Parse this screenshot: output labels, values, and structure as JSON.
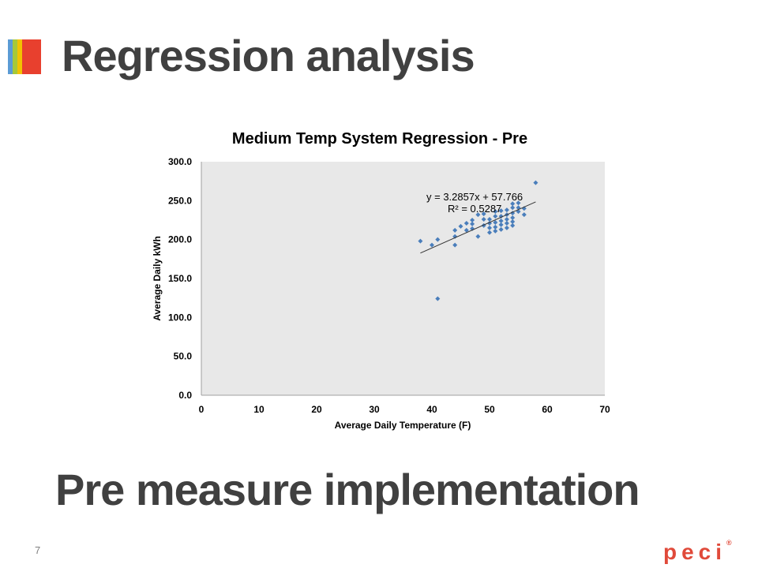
{
  "slide": {
    "title": "Regression analysis",
    "subtitle": "Pre measure implementation",
    "page_number": "7",
    "logo_text": "peci",
    "logo_mark": "®",
    "accent_colors": [
      "#5b9bd5",
      "#a6c839",
      "#f2c200",
      "#e8402e"
    ],
    "logo_color": "#e04a3a"
  },
  "chart_data": {
    "type": "scatter",
    "title": "Medium Temp System Regression - Pre",
    "xlabel": "Average Daily Temperature (F)",
    "ylabel": "Average Daily kWh",
    "xlim": [
      0,
      70
    ],
    "ylim": [
      0,
      300
    ],
    "x_ticks": [
      0,
      10,
      20,
      30,
      40,
      50,
      60,
      70
    ],
    "y_ticks": [
      "0.0",
      "50.0",
      "100.0",
      "150.0",
      "200.0",
      "250.0",
      "300.0"
    ],
    "y_tick_values": [
      0,
      50,
      100,
      150,
      200,
      250,
      300
    ],
    "grid": false,
    "plot_background": "#e8e8e8",
    "marker_color": "#4a7ebb",
    "trendline": {
      "type": "linear",
      "slope": 3.2857,
      "intercept": 57.766,
      "x_range": [
        38,
        58
      ],
      "equation_label": "y = 3.2857x + 57.766",
      "r2_label": "R² = 0.5287"
    },
    "series": [
      {
        "points": [
          [
            38,
            198
          ],
          [
            40,
            193
          ],
          [
            41,
            200
          ],
          [
            41,
            124
          ],
          [
            44,
            193
          ],
          [
            44,
            204
          ],
          [
            44,
            212
          ],
          [
            45,
            217
          ],
          [
            46,
            212
          ],
          [
            46,
            221
          ],
          [
            47,
            214
          ],
          [
            47,
            220
          ],
          [
            47,
            225
          ],
          [
            48,
            204
          ],
          [
            48,
            232
          ],
          [
            49,
            218
          ],
          [
            49,
            226
          ],
          [
            49,
            233
          ],
          [
            50,
            209
          ],
          [
            50,
            215
          ],
          [
            50,
            221
          ],
          [
            50,
            226
          ],
          [
            51,
            211
          ],
          [
            51,
            216
          ],
          [
            51,
            222
          ],
          [
            51,
            230
          ],
          [
            51,
            236
          ],
          [
            52,
            213
          ],
          [
            52,
            219
          ],
          [
            52,
            224
          ],
          [
            52,
            230
          ],
          [
            52,
            237
          ],
          [
            53,
            215
          ],
          [
            53,
            221
          ],
          [
            53,
            226
          ],
          [
            53,
            232
          ],
          [
            53,
            238
          ],
          [
            54,
            218
          ],
          [
            54,
            223
          ],
          [
            54,
            228
          ],
          [
            54,
            234
          ],
          [
            54,
            241
          ],
          [
            54,
            246
          ],
          [
            55,
            236
          ],
          [
            55,
            241
          ],
          [
            55,
            247
          ],
          [
            56,
            232
          ],
          [
            56,
            240
          ],
          [
            58,
            273
          ]
        ]
      }
    ]
  }
}
